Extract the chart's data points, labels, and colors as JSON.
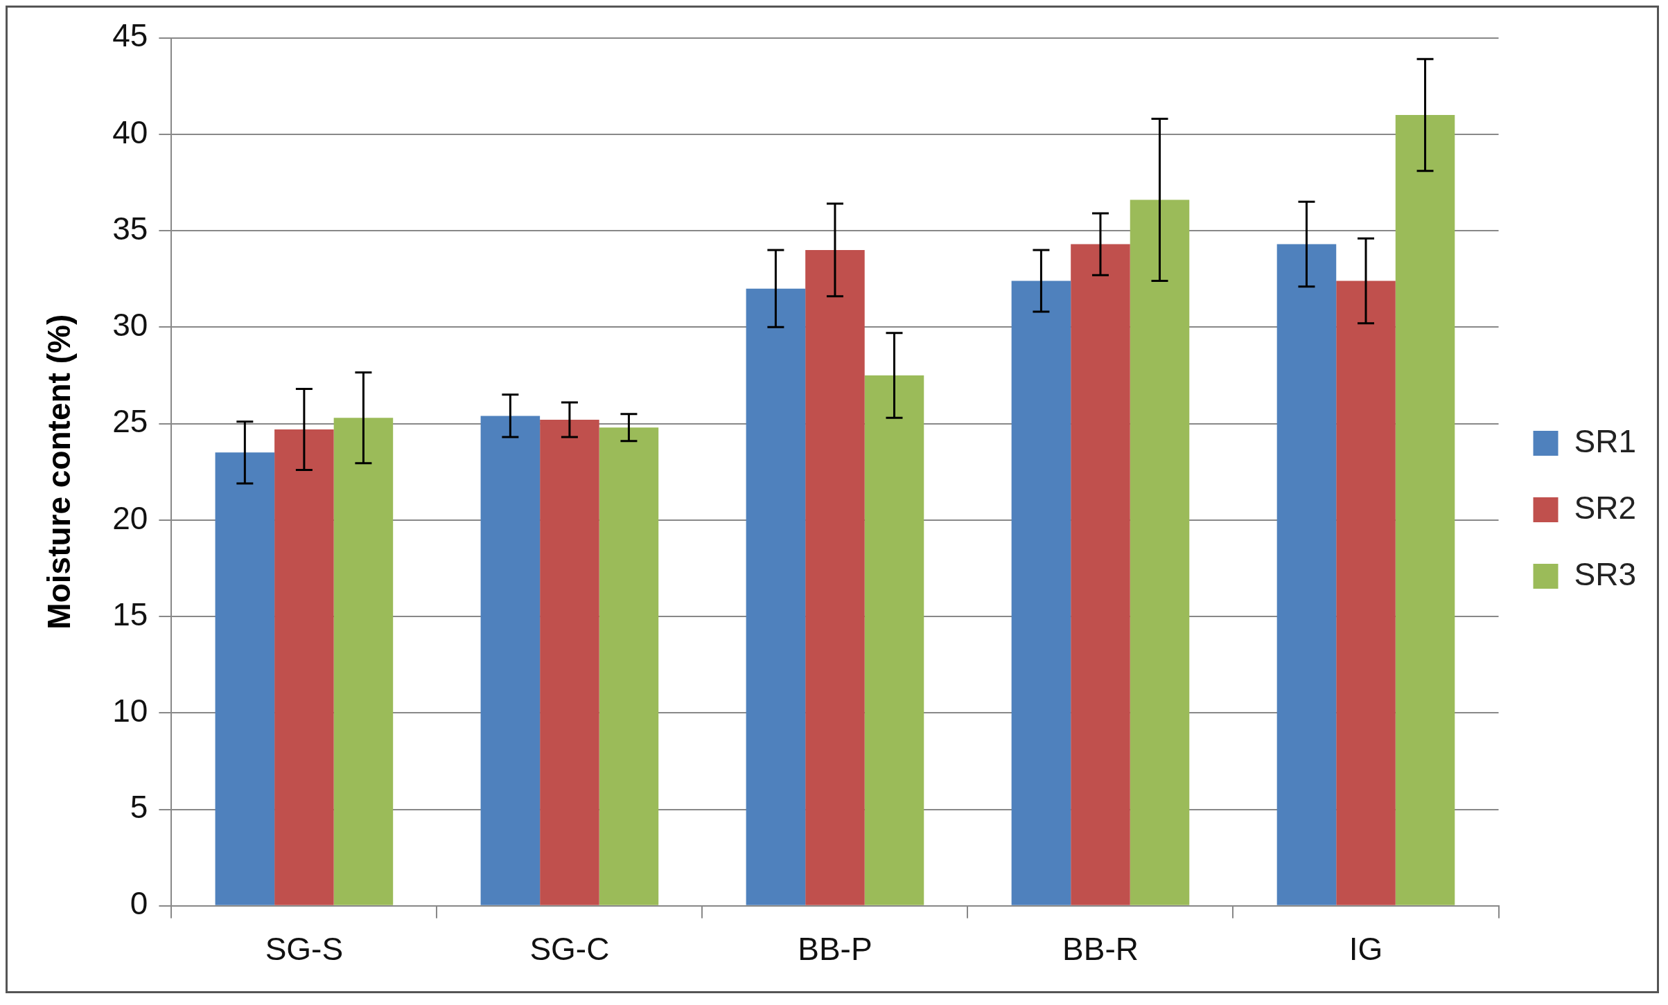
{
  "chart_data": {
    "type": "bar",
    "ylabel": "Moisture content (%)",
    "categories": [
      "SG-S",
      "SG-C",
      "BB-P",
      "BB-R",
      "IG"
    ],
    "series": [
      {
        "name": "SR1",
        "color": "#4f81bd",
        "values": [
          23.5,
          25.4,
          32.0,
          32.4,
          34.3
        ],
        "errors": [
          1.6,
          1.1,
          2.0,
          1.6,
          2.2
        ]
      },
      {
        "name": "SR2",
        "color": "#c0504d",
        "values": [
          24.7,
          25.2,
          34.0,
          34.3,
          32.4
        ],
        "errors": [
          2.1,
          0.9,
          2.4,
          1.6,
          2.2
        ]
      },
      {
        "name": "SR3",
        "color": "#9bbb59",
        "values": [
          25.3,
          24.8,
          27.5,
          36.6,
          41.0
        ],
        "errors": [
          2.35,
          0.7,
          2.2,
          4.2,
          2.9
        ]
      }
    ],
    "ylim": [
      0,
      45
    ],
    "yticks": [
      0,
      5,
      10,
      15,
      20,
      25,
      30,
      35,
      40,
      45
    ],
    "grid": "y",
    "legend": "right"
  }
}
